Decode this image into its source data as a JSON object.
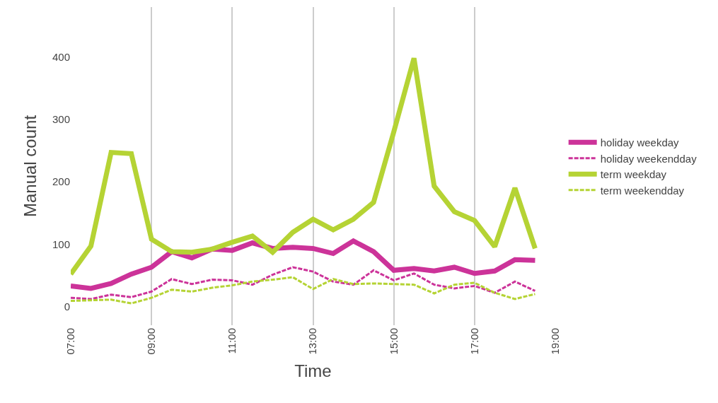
{
  "chart_data": {
    "type": "line",
    "xlabel": "Time",
    "ylabel": "Manual count",
    "x": [
      7,
      7.5,
      8,
      8.5,
      9,
      9.5,
      10,
      10.5,
      11,
      11.5,
      12,
      12.5,
      13,
      13.5,
      14,
      14.5,
      15,
      15.5,
      16,
      16.5,
      17,
      17.5,
      18,
      18.5
    ],
    "xlim": [
      7,
      19
    ],
    "xticks": [
      {
        "value": 7,
        "label": "07:00"
      },
      {
        "value": 9,
        "label": "09:00"
      },
      {
        "value": 11,
        "label": "11:00"
      },
      {
        "value": 13,
        "label": "13:00"
      },
      {
        "value": 15,
        "label": "15:00"
      },
      {
        "value": 17,
        "label": "17:00"
      },
      {
        "value": 19,
        "label": "19:00"
      }
    ],
    "ylim": [
      -30,
      480
    ],
    "yticks": [
      0,
      100,
      200,
      300,
      400
    ],
    "grid": "x",
    "legend": "right",
    "marker": "none",
    "series": [
      {
        "name": "holiday weekday",
        "color": "#cc3399",
        "line_style": "solid",
        "values": [
          33,
          29,
          37,
          52,
          63,
          88,
          78,
          92,
          90,
          102,
          93,
          95,
          93,
          85,
          105,
          88,
          58,
          61,
          57,
          63,
          53,
          57,
          75,
          74
        ]
      },
      {
        "name": "holiday weekendday",
        "color": "#cc3399",
        "line_style": "dashed",
        "values": [
          14,
          12,
          19,
          15,
          24,
          44,
          36,
          43,
          42,
          35,
          51,
          63,
          56,
          40,
          35,
          58,
          42,
          53,
          35,
          29,
          33,
          22,
          40,
          25
        ]
      },
      {
        "name": "term weekday",
        "color": "#b5d334",
        "line_style": "solid",
        "values": [
          52,
          97,
          247,
          245,
          108,
          88,
          87,
          92,
          103,
          113,
          87,
          119,
          140,
          123,
          140,
          167,
          280,
          398,
          193,
          152,
          138,
          96,
          190,
          93
        ]
      },
      {
        "name": "term weekendday",
        "color": "#b5d334",
        "line_style": "dashed",
        "values": [
          9,
          10,
          11,
          5,
          14,
          27,
          24,
          30,
          34,
          40,
          43,
          47,
          28,
          44,
          36,
          37,
          36,
          35,
          21,
          35,
          38,
          22,
          12,
          20
        ]
      }
    ]
  }
}
